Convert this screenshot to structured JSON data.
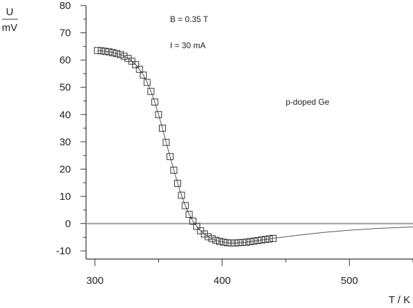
{
  "chart_data": {
    "type": "scatter",
    "title": "",
    "xlabel": "T / K",
    "ylabel_top": "U",
    "ylabel_bottom": "mV",
    "xlim": [
      293,
      550
    ],
    "ylim": [
      -13,
      80
    ],
    "xticks": [
      300,
      400,
      500
    ],
    "yticks": [
      -10,
      0,
      10,
      20,
      30,
      40,
      50,
      60,
      70,
      80
    ],
    "grid": false,
    "annotations": [
      "B = 0.35 T",
      "I = 30 mA",
      "p-doped Ge"
    ],
    "zero_line": 0,
    "series": [
      {
        "marker": "square",
        "x": [
          302,
          305,
          308,
          311,
          314,
          317,
          320,
          323,
          326,
          329,
          332,
          335,
          338,
          341,
          344,
          347,
          350,
          353,
          356,
          359,
          362,
          365,
          368,
          371,
          374,
          377,
          380,
          383,
          386,
          389,
          392,
          395,
          398,
          401,
          404,
          407,
          410,
          413,
          416,
          419,
          422,
          425,
          428,
          431,
          434,
          437,
          440
        ],
        "y": [
          63.5,
          63.4,
          63.2,
          63.0,
          62.7,
          62.4,
          62.0,
          61.4,
          60.6,
          59.6,
          58.3,
          56.6,
          54.5,
          51.8,
          48.5,
          44.6,
          40.0,
          35.0,
          29.8,
          24.6,
          19.6,
          14.8,
          10.4,
          6.6,
          3.4,
          0.9,
          -1.0,
          -2.6,
          -3.8,
          -4.8,
          -5.5,
          -6.1,
          -6.5,
          -6.8,
          -7.0,
          -7.1,
          -7.1,
          -7.0,
          -6.9,
          -6.8,
          -6.6,
          -6.4,
          -6.2,
          -6.0,
          -5.8,
          -5.6,
          -5.4
        ]
      },
      {
        "marker": "none",
        "x": [
          440,
          460,
          480,
          500,
          520,
          550
        ],
        "y": [
          -5.4,
          -4.2,
          -3.2,
          -2.4,
          -1.8,
          -1.2
        ]
      }
    ]
  }
}
